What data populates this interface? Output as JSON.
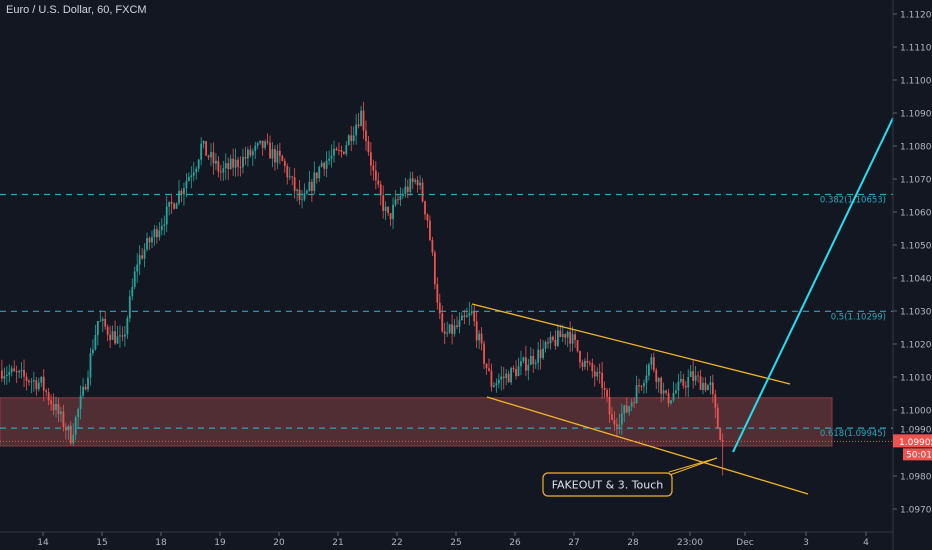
{
  "header": {
    "title": "Euro / U.S. Dollar, 60, FXCM"
  },
  "colors": {
    "background": "#131722",
    "up": "#26a69a",
    "down": "#ef5350",
    "fib": "#2aa7b7",
    "channel": "#f0b429",
    "projection": "#22e0f0",
    "zone_fill": "#5c3337",
    "zone_border": "#8c3c42",
    "axis_text": "#b2b5be"
  },
  "chart_data": {
    "type": "candlestick",
    "symbol": "EURUSD",
    "timeframe": "60",
    "yaxis": {
      "range": [
        1.0965,
        1.1125
      ],
      "ticks": [
        "1.11200",
        "1.11100",
        "1.11000",
        "1.10900",
        "1.10800",
        "1.10700",
        "1.10600",
        "1.10500",
        "1.10400",
        "1.10300",
        "1.10200",
        "1.10100",
        "1.10000",
        "1.09900",
        "1.09800",
        "1.09700"
      ]
    },
    "xaxis": {
      "ticks": [
        "14",
        "15",
        "18",
        "19",
        "20",
        "21",
        "22",
        "25",
        "26",
        "27",
        "28",
        "23:00",
        "Dec",
        "3",
        "4"
      ]
    },
    "price_path_waypoints_bar_price": [
      [
        0,
        1.1012
      ],
      [
        16,
        1.1008
      ],
      [
        28,
        1.0992
      ],
      [
        33,
        1.1005
      ],
      [
        39,
        1.1027
      ],
      [
        49,
        1.102
      ],
      [
        55,
        1.1045
      ],
      [
        69,
        1.1062
      ],
      [
        79,
        1.1075
      ],
      [
        81,
        1.108
      ],
      [
        89,
        1.1072
      ],
      [
        98,
        1.1076
      ],
      [
        106,
        1.108
      ],
      [
        114,
        1.1075
      ],
      [
        122,
        1.1062
      ],
      [
        130,
        1.1075
      ],
      [
        138,
        1.1078
      ],
      [
        146,
        1.109
      ],
      [
        152,
        1.1068
      ],
      [
        157,
        1.1058
      ],
      [
        163,
        1.1066
      ],
      [
        169,
        1.107
      ],
      [
        173,
        1.1058
      ],
      [
        176,
        1.104
      ],
      [
        179,
        1.1022
      ],
      [
        185,
        1.1025
      ],
      [
        191,
        1.1029
      ],
      [
        195,
        1.1018
      ],
      [
        199,
        1.1008
      ],
      [
        207,
        1.1011
      ],
      [
        220,
        1.1018
      ],
      [
        230,
        1.1024
      ],
      [
        236,
        1.1015
      ],
      [
        244,
        1.1008
      ],
      [
        248,
        1.0996
      ],
      [
        254,
        1.1
      ],
      [
        264,
        1.1015
      ],
      [
        270,
        1.1003
      ],
      [
        280,
        1.101
      ],
      [
        288,
        1.1007
      ],
      [
        291,
        1.0995
      ],
      [
        293,
        1.0991
      ]
    ],
    "current_price": {
      "label": "1.09905",
      "value": 1.09905,
      "countdown": "50:01"
    },
    "annotations": {
      "fib_levels": [
        {
          "label": "0.382(1.10653)",
          "value": 1.10653
        },
        {
          "label": "0.5(1.10299)",
          "value": 1.10299
        },
        {
          "label": "0.618(1.09945)",
          "value": 1.09945
        }
      ],
      "zone": {
        "top": 1.10037,
        "bottom": 1.09891
      },
      "callout": "FAKEOUT & 3. Touch"
    }
  }
}
